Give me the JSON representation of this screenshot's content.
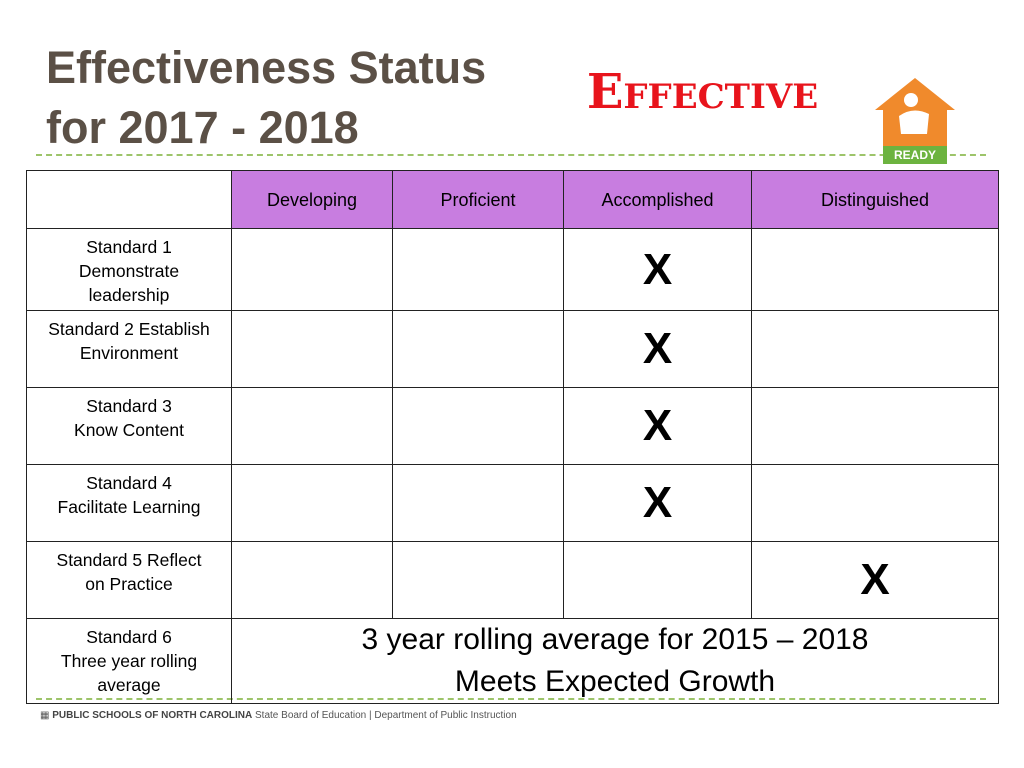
{
  "header": {
    "title_lines": [
      "Effectiveness Status",
      "for 2017 - 2018"
    ],
    "stamp": "Effective",
    "logo_text": "READY"
  },
  "table": {
    "columns": [
      "Developing",
      "Proficient",
      "Accomplished",
      "Distinguished"
    ],
    "rows": [
      [
        "Standard 1\nDemonstrate\nleadership",
        null,
        null,
        "X",
        null
      ],
      [
        "Standard 2 Establish\nEnvironment",
        null,
        null,
        "X",
        null
      ],
      [
        "Standard 3\nKnow Content",
        null,
        null,
        "X",
        null
      ],
      [
        "Standard 4\nFacilitate Learning",
        null,
        null,
        "X",
        null
      ],
      [
        "Standard 5 Reflect\non Practice",
        null,
        null,
        null,
        "X"
      ]
    ],
    "summary_row": {
      "label": "Standard 6\nThree year rolling\naverage",
      "lines": [
        "3 year rolling average for 2015 – 2018",
        "Meets Expected Growth"
      ]
    }
  },
  "footer": {
    "org": "PUBLIC SCHOOLS OF NORTH CAROLINA",
    "departments": "State Board of Education | Department of Public Instruction"
  }
}
